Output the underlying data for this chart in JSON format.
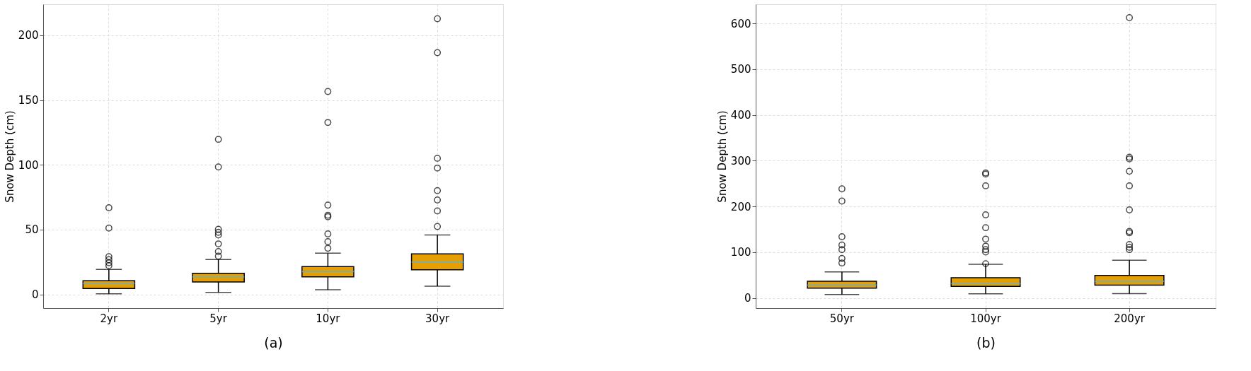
{
  "chart_data": [
    {
      "type": "box",
      "xlabel": "(a)",
      "ylabel": "Snow Depth (cm)",
      "categories": [
        "2yr",
        "5yr",
        "10yr",
        "30yr"
      ],
      "ylim": [
        -10.6,
        224
      ],
      "yticks": [
        0,
        50,
        100,
        150,
        200
      ],
      "grid": true,
      "series": [
        {
          "color": "#e69f00",
          "boxes": [
            {
              "low": 0.4,
              "q1": 4.5,
              "median": 8.3,
              "q3": 10.5,
              "high": 19.3,
              "outliers": [
                22.2,
                24.4,
                26.8,
                29.1,
                51.2,
                66.9
              ]
            },
            {
              "low": 1.6,
              "q1": 9.6,
              "median": 13.6,
              "q3": 16.3,
              "high": 26.9,
              "outliers": [
                29.5,
                33.1,
                39,
                45.8,
                47.9,
                50.3,
                98.4,
                119.7
              ]
            },
            {
              "low": 3.6,
              "q1": 13.6,
              "median": 17.7,
              "q3": 21.5,
              "high": 31.8,
              "outliers": [
                35.6,
                40.7,
                46.7,
                59.9,
                61.1,
                68.9,
                132.7,
                156.6
              ]
            },
            {
              "low": 6.3,
              "q1": 19,
              "median": 25,
              "q3": 31.3,
              "high": 45.9,
              "outliers": [
                52.4,
                64.4,
                72.9,
                80.1,
                97.5,
                105.1,
                186.6,
                212.8
              ]
            }
          ]
        }
      ]
    },
    {
      "type": "box",
      "xlabel": "(b)",
      "ylabel": "Snow Depth (cm)",
      "categories": [
        "50yr",
        "100yr",
        "200yr"
      ],
      "ylim": [
        -22,
        642
      ],
      "yticks": [
        0,
        100,
        200,
        300,
        400,
        500,
        600
      ],
      "grid": true,
      "series": [
        {
          "color": "#e69f00",
          "boxes": [
            {
              "low": 7.7,
              "q1": 21.5,
              "median": 28.1,
              "q3": 36.8,
              "high": 57.2,
              "outliers": [
                76.6,
                86.4,
                105.8,
                116,
                133.9,
                212,
                238.6
              ]
            },
            {
              "low": 9.2,
              "q1": 25.5,
              "median": 31.7,
              "q3": 44.5,
              "high": 73.6,
              "outliers": [
                75.1,
                100.7,
                105.8,
                113.4,
                128.8,
                153.8,
                181.9,
                245.3,
                270.8,
                273.4
              ]
            },
            {
              "low": 9.7,
              "q1": 28.1,
              "median": 36.8,
              "q3": 49.6,
              "high": 82.8,
              "outliers": [
                105.8,
                110.9,
                117,
                142.6,
                145.6,
                192.6,
                245.3,
                277,
                304,
                307.6,
                612.7
              ]
            }
          ]
        }
      ]
    }
  ]
}
